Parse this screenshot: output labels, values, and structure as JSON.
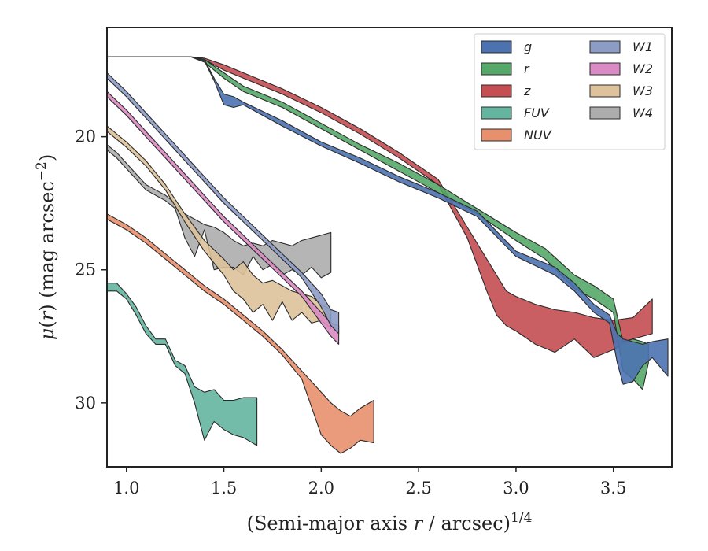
{
  "chart_data": {
    "type": "area",
    "xlabel": "(Semi-major axis r / arcsec)^1/4",
    "ylabel": "μ(r) (mag arcsec^−2)",
    "xlim": [
      0.9,
      3.8
    ],
    "ylim": [
      32.4,
      15.9
    ],
    "y_inverted": true,
    "xticks": [
      1.0,
      1.5,
      2.0,
      2.5,
      3.0,
      3.5
    ],
    "xtick_labels": [
      "1.0",
      "1.5",
      "2.0",
      "2.5",
      "3.0",
      "3.5"
    ],
    "yticks": [
      20,
      25,
      30
    ],
    "ytick_labels": [
      "20",
      "25",
      "30"
    ],
    "grid": false,
    "legend_position": "top-right",
    "legend_columns": 2,
    "series": [
      {
        "name": "g",
        "color": "#4c72b0",
        "x": [
          0.9,
          1.33,
          1.4,
          1.45,
          1.5,
          1.55,
          1.6,
          1.8,
          2.0,
          2.2,
          2.4,
          2.6,
          2.8,
          3.0,
          3.2,
          3.3,
          3.4,
          3.48,
          3.52,
          3.55,
          3.6,
          3.65,
          3.7,
          3.78
        ],
        "lo": [
          17.0,
          17.0,
          17.1,
          17.8,
          18.4,
          18.5,
          18.7,
          19.4,
          20.2,
          20.8,
          21.5,
          22.1,
          22.8,
          24.3,
          24.9,
          25.5,
          26.3,
          26.7,
          27.4,
          27.6,
          27.7,
          27.8,
          27.7,
          27.6
        ],
        "hi": [
          17.0,
          17.0,
          17.15,
          17.9,
          18.8,
          18.9,
          18.8,
          19.6,
          20.35,
          21.0,
          21.7,
          22.3,
          23.0,
          24.5,
          25.2,
          25.8,
          26.6,
          27.0,
          28.5,
          29.3,
          29.2,
          28.6,
          28.3,
          29.0
        ]
      },
      {
        "name": "r",
        "color": "#55a868",
        "x": [
          0.9,
          1.33,
          1.4,
          1.5,
          1.6,
          1.8,
          2.0,
          2.2,
          2.4,
          2.6,
          2.8,
          3.0,
          3.15,
          3.3,
          3.4,
          3.5,
          3.55,
          3.6,
          3.65,
          3.68
        ],
        "lo": [
          17.0,
          17.0,
          17.1,
          17.6,
          18.1,
          18.7,
          19.5,
          20.3,
          21.0,
          21.8,
          22.7,
          23.6,
          24.2,
          25.2,
          25.6,
          26.1,
          27.7,
          27.6,
          27.7,
          27.8
        ],
        "hi": [
          17.0,
          17.0,
          17.2,
          17.8,
          18.3,
          18.9,
          19.7,
          20.5,
          21.3,
          22.1,
          22.9,
          23.9,
          24.6,
          25.7,
          26.1,
          26.6,
          28.8,
          29.1,
          29.5,
          28.5
        ]
      },
      {
        "name": "z",
        "color": "#c44e52",
        "x": [
          0.9,
          1.33,
          1.4,
          1.5,
          1.6,
          1.8,
          2.0,
          2.2,
          2.4,
          2.6,
          2.75,
          2.85,
          2.9,
          2.95,
          3.0,
          3.1,
          3.2,
          3.3,
          3.4,
          3.5,
          3.6,
          3.7
        ],
        "lo": [
          17.0,
          17.0,
          17.05,
          17.3,
          17.6,
          18.2,
          18.9,
          19.7,
          20.6,
          21.6,
          23.4,
          24.6,
          25.2,
          25.8,
          26.0,
          26.3,
          26.5,
          26.6,
          26.8,
          26.9,
          26.8,
          26.1
        ],
        "hi": [
          17.0,
          17.0,
          17.1,
          17.5,
          17.8,
          18.4,
          19.1,
          19.9,
          20.8,
          21.8,
          23.8,
          25.8,
          26.7,
          27.1,
          27.3,
          27.8,
          28.1,
          27.6,
          28.3,
          28.0,
          27.6,
          27.4
        ]
      },
      {
        "name": "FUV",
        "color": "#64b5a0",
        "x": [
          0.9,
          0.95,
          1.0,
          1.05,
          1.1,
          1.15,
          1.2,
          1.25,
          1.3,
          1.35,
          1.4,
          1.45,
          1.5,
          1.55,
          1.6,
          1.67
        ],
        "lo": [
          25.5,
          25.5,
          25.9,
          26.4,
          27.1,
          27.6,
          27.6,
          28.4,
          28.6,
          29.4,
          29.6,
          29.5,
          29.9,
          29.9,
          29.8,
          29.8
        ],
        "hi": [
          25.8,
          25.8,
          26.1,
          26.7,
          27.4,
          27.8,
          27.8,
          28.6,
          28.9,
          30.0,
          31.4,
          30.7,
          31.0,
          31.2,
          31.3,
          31.6
        ]
      },
      {
        "name": "NUV",
        "color": "#e8906d",
        "x": [
          0.9,
          1.0,
          1.1,
          1.2,
          1.3,
          1.4,
          1.5,
          1.6,
          1.7,
          1.8,
          1.9,
          2.0,
          2.05,
          2.1,
          2.15,
          2.2,
          2.27
        ],
        "lo": [
          22.9,
          23.3,
          23.8,
          24.4,
          25.0,
          25.6,
          26.1,
          26.7,
          27.3,
          28.0,
          28.8,
          29.6,
          30.0,
          30.3,
          30.5,
          30.2,
          29.9
        ],
        "hi": [
          23.1,
          23.5,
          24.0,
          24.6,
          25.2,
          25.8,
          26.3,
          26.9,
          27.5,
          28.2,
          29.1,
          31.2,
          31.6,
          31.9,
          31.7,
          31.4,
          31.5
        ]
      },
      {
        "name": "W1",
        "color": "#8c9cc4",
        "x": [
          0.9,
          1.0,
          1.1,
          1.2,
          1.3,
          1.4,
          1.5,
          1.6,
          1.7,
          1.8,
          1.9,
          2.0,
          2.05,
          2.09
        ],
        "lo": [
          17.6,
          18.3,
          19.1,
          19.9,
          20.7,
          21.5,
          22.3,
          23.0,
          23.7,
          24.4,
          25.1,
          25.9,
          26.5,
          26.6
        ],
        "hi": [
          17.8,
          18.5,
          19.3,
          20.1,
          20.9,
          21.7,
          22.5,
          23.2,
          23.9,
          24.6,
          25.3,
          26.4,
          27.1,
          27.4
        ]
      },
      {
        "name": "W2",
        "color": "#da8bc3",
        "x": [
          0.9,
          1.0,
          1.1,
          1.2,
          1.3,
          1.4,
          1.5,
          1.6,
          1.7,
          1.8,
          1.9,
          2.0,
          2.05,
          2.09
        ],
        "lo": [
          18.3,
          19.0,
          19.8,
          20.6,
          21.4,
          22.2,
          23.0,
          23.7,
          24.4,
          25.1,
          25.8,
          26.6,
          27.0,
          27.1
        ],
        "hi": [
          18.5,
          19.2,
          20.0,
          20.8,
          21.6,
          22.4,
          23.2,
          23.9,
          24.6,
          25.3,
          26.0,
          27.0,
          27.5,
          27.8
        ]
      },
      {
        "name": "W3",
        "color": "#ddc29b",
        "x": [
          0.9,
          1.0,
          1.1,
          1.2,
          1.3,
          1.4,
          1.5,
          1.55,
          1.6,
          1.65,
          1.7,
          1.75,
          1.8,
          1.85,
          1.9,
          1.95,
          2.0,
          2.05
        ],
        "lo": [
          19.6,
          20.2,
          20.9,
          21.8,
          22.9,
          23.9,
          24.6,
          25.0,
          24.7,
          25.2,
          25.5,
          25.4,
          25.6,
          25.8,
          25.9,
          26.0,
          26.3,
          26.5
        ],
        "hi": [
          19.8,
          20.4,
          21.1,
          22.0,
          23.2,
          24.3,
          25.2,
          25.8,
          26.1,
          26.6,
          26.3,
          26.9,
          26.2,
          26.9,
          26.6,
          27.0,
          26.9,
          27.2
        ]
      },
      {
        "name": "W4",
        "color": "#adadad",
        "x": [
          0.9,
          0.95,
          1.0,
          1.05,
          1.1,
          1.15,
          1.2,
          1.25,
          1.3,
          1.35,
          1.4,
          1.45,
          1.5,
          1.55,
          1.6,
          1.65,
          1.7,
          1.75,
          1.8,
          1.85,
          1.9,
          1.95,
          2.0,
          2.05
        ],
        "lo": [
          20.3,
          20.6,
          21.0,
          21.4,
          21.8,
          22.0,
          22.2,
          22.5,
          22.9,
          23.1,
          23.3,
          23.4,
          23.6,
          23.9,
          24.1,
          24.0,
          24.1,
          23.9,
          24.0,
          24.1,
          23.9,
          23.8,
          23.7,
          23.6
        ],
        "hi": [
          20.5,
          20.8,
          21.2,
          21.6,
          22.0,
          22.2,
          22.4,
          22.7,
          23.8,
          24.5,
          23.5,
          25.0,
          24.9,
          24.9,
          25.2,
          24.5,
          25.0,
          24.8,
          25.2,
          25.0,
          25.2,
          24.9,
          25.3,
          25.1
        ]
      }
    ]
  }
}
